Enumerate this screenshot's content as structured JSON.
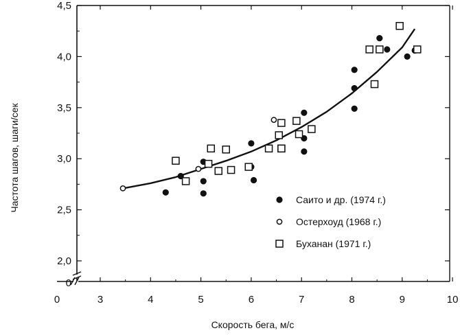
{
  "chart_data": {
    "type": "scatter",
    "xlabel": "Скорость бега, м/с",
    "ylabel": "Частота шагов, шаги/сек",
    "x_ticks": [
      "0",
      "3",
      "4",
      "5",
      "6",
      "7",
      "8",
      "9",
      "10"
    ],
    "y_ticks": [
      "0",
      "2,0",
      "2,5",
      "3,0",
      "3,5",
      "4,0",
      "4,5"
    ],
    "xlim": [
      2.3,
      10.0
    ],
    "ylim": [
      1.9,
      4.5
    ],
    "axis_breaks": true,
    "grid": false,
    "legend_position": "lower-right",
    "series": [
      {
        "name": "Саито и др. (1974 г.)",
        "marker": "filled-circle",
        "x": [
          4.3,
          4.6,
          5.05,
          5.05,
          5.05,
          6.0,
          6.0,
          6.05,
          7.05,
          7.05,
          7.05,
          8.05,
          8.05,
          8.05,
          8.55,
          8.7,
          9.1,
          9.25
        ],
        "y": [
          2.67,
          2.83,
          2.97,
          2.78,
          2.66,
          3.15,
          2.92,
          2.79,
          3.45,
          3.2,
          3.07,
          3.87,
          3.69,
          3.49,
          4.18,
          4.07,
          4.0,
          4.06
        ]
      },
      {
        "name": "Остерхоуд (1968 г.)",
        "marker": "open-circle",
        "x": [
          3.45,
          4.95,
          6.45
        ],
        "y": [
          2.71,
          2.9,
          3.38
        ]
      },
      {
        "name": "Буханан (1971 г.)",
        "marker": "open-square",
        "x": [
          4.5,
          4.7,
          5.15,
          5.2,
          5.35,
          5.5,
          5.6,
          5.95,
          6.35,
          6.55,
          6.6,
          6.6,
          6.6,
          6.9,
          6.95,
          7.2,
          8.35,
          8.45,
          8.55,
          8.95,
          9.3
        ],
        "y": [
          2.98,
          2.78,
          2.95,
          3.1,
          2.88,
          3.09,
          2.89,
          2.92,
          3.1,
          3.23,
          3.35,
          3.1,
          3.1,
          3.37,
          3.24,
          3.29,
          4.07,
          3.73,
          4.07,
          4.3,
          4.07
        ]
      }
    ],
    "fit_curve": {
      "x": [
        3.45,
        4.0,
        4.5,
        5.0,
        5.5,
        6.0,
        6.5,
        7.0,
        7.5,
        8.0,
        8.5,
        9.0,
        9.25
      ],
      "y": [
        2.71,
        2.76,
        2.82,
        2.9,
        2.98,
        3.07,
        3.18,
        3.31,
        3.46,
        3.64,
        3.85,
        4.09,
        4.27
      ]
    }
  }
}
